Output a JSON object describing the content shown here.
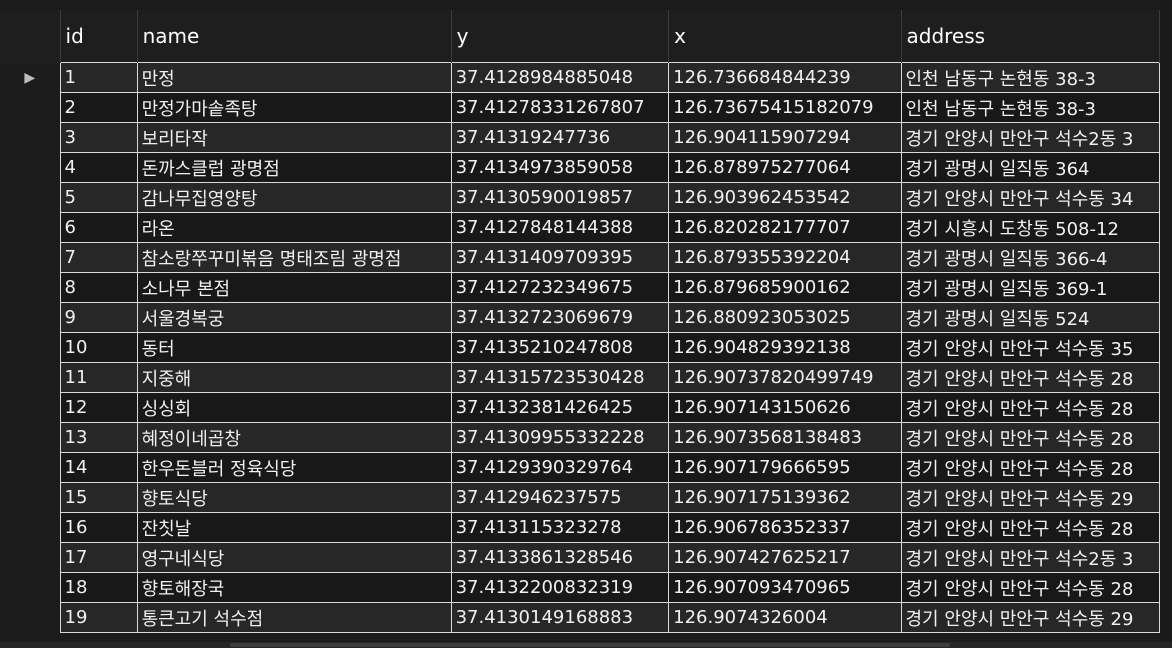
{
  "columns": [
    "id",
    "name",
    "y",
    "x",
    "address"
  ],
  "current_row_marker": "▶",
  "rows": [
    {
      "id": "1",
      "name": "만정",
      "y": "37.4128984885048",
      "x": "126.736684844239",
      "address": "인천 남동구 논현동 38-3"
    },
    {
      "id": "2",
      "name": "만정가마솥족탕",
      "y": "37.41278331267807",
      "x": "126.73675415182079",
      "address": "인천 남동구 논현동 38-3"
    },
    {
      "id": "3",
      "name": "보리타작",
      "y": "37.41319247736",
      "x": "126.904115907294",
      "address": "경기 안양시 만안구 석수2동 3"
    },
    {
      "id": "4",
      "name": "돈까스클럽 광명점",
      "y": "37.4134973859058",
      "x": "126.878975277064",
      "address": "경기 광명시 일직동 364"
    },
    {
      "id": "5",
      "name": "감나무집영양탕",
      "y": "37.4130590019857",
      "x": "126.903962453542",
      "address": "경기 안양시 만안구 석수동 34"
    },
    {
      "id": "6",
      "name": "라온",
      "y": "37.4127848144388",
      "x": "126.820282177707",
      "address": "경기 시흥시 도창동 508-12"
    },
    {
      "id": "7",
      "name": "참소랑쭈꾸미볶음 명태조림 광명점",
      "y": "37.4131409709395",
      "x": "126.879355392204",
      "address": "경기 광명시 일직동 366-4"
    },
    {
      "id": "8",
      "name": "소나무 본점",
      "y": "37.4127232349675",
      "x": "126.879685900162",
      "address": "경기 광명시 일직동 369-1"
    },
    {
      "id": "9",
      "name": "서울경복궁",
      "y": "37.4132723069679",
      "x": "126.880923053025",
      "address": "경기 광명시 일직동 524"
    },
    {
      "id": "10",
      "name": "동터",
      "y": "37.4135210247808",
      "x": "126.904829392138",
      "address": "경기 안양시 만안구 석수동 35"
    },
    {
      "id": "11",
      "name": "지중해",
      "y": "37.41315723530428",
      "x": "126.90737820499749",
      "address": "경기 안양시 만안구 석수동 28"
    },
    {
      "id": "12",
      "name": "싱싱회",
      "y": "37.4132381426425",
      "x": "126.907143150626",
      "address": "경기 안양시 만안구 석수동 28"
    },
    {
      "id": "13",
      "name": "혜정이네곱창",
      "y": "37.41309955332228",
      "x": "126.9073568138483",
      "address": "경기 안양시 만안구 석수동 28"
    },
    {
      "id": "14",
      "name": "한우돈블러 정육식당",
      "y": "37.4129390329764",
      "x": "126.907179666595",
      "address": "경기 안양시 만안구 석수동 28"
    },
    {
      "id": "15",
      "name": "향토식당",
      "y": "37.412946237575",
      "x": "126.907175139362",
      "address": "경기 안양시 만안구 석수동 29"
    },
    {
      "id": "16",
      "name": "잔칫날",
      "y": "37.413115323278",
      "x": "126.906786352337",
      "address": "경기 안양시 만안구 석수동 28"
    },
    {
      "id": "17",
      "name": "영구네식당",
      "y": "37.4133861328546",
      "x": "126.907427625217",
      "address": "경기 안양시 만안구 석수2동 3"
    },
    {
      "id": "18",
      "name": "향토해장국",
      "y": "37.4132200832319",
      "x": "126.907093470965",
      "address": "경기 안양시 만안구 석수동 28"
    },
    {
      "id": "19",
      "name": "통큰고기 석수점",
      "y": "37.4130149168883",
      "x": "126.9074326004",
      "address": "경기 안양시 만안구 석수동 29"
    }
  ]
}
